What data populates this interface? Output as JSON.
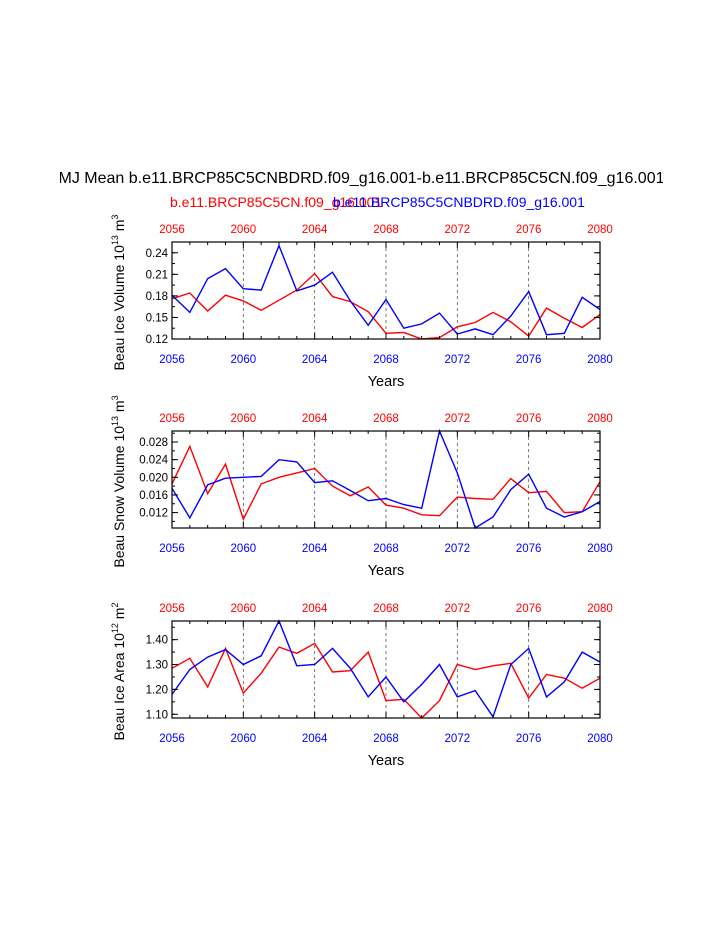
{
  "figure": {
    "title": "MJ Mean b.e11.BRCP85C5CNBDRD.f09_g16.001-b.e11.BRCP85C5CN.f09_g16.001",
    "legend_red": "b.e11.BRCP85C5CN.f09_g16.001",
    "legend_blue": "b.e11.BRCP85C5CNBDRD.f09_g16.001",
    "colors": {
      "red": "#ff0000",
      "blue": "#0000ff",
      "axis": "#000000",
      "grid": "#555555"
    }
  },
  "chart_data": [
    {
      "type": "line",
      "title": "",
      "xlabel": "Years",
      "ylabel": "Beau Ice Volume 10",
      "ylabel_exp": "13",
      "ylabel_unit": " m",
      "ylabel_unit_exp": "3",
      "xlim": [
        2056,
        2080
      ],
      "ylim": [
        0.12,
        0.255
      ],
      "yticks": [
        0.12,
        0.15,
        0.18,
        0.21,
        0.24
      ],
      "ytick_labels": [
        "0.12",
        "0.15",
        "0.18",
        "0.21",
        "0.24"
      ],
      "xticks": [
        2056,
        2060,
        2064,
        2068,
        2072,
        2076,
        2080
      ],
      "xtick_labels": [
        "2056",
        "2060",
        "2064",
        "2068",
        "2072",
        "2076",
        "2080"
      ],
      "x": [
        2056,
        2057,
        2058,
        2059,
        2060,
        2061,
        2062,
        2063,
        2064,
        2065,
        2066,
        2067,
        2068,
        2069,
        2070,
        2071,
        2072,
        2073,
        2074,
        2075,
        2076,
        2077,
        2078,
        2079,
        2080
      ],
      "series": [
        {
          "name": "b.e11.BRCP85C5CN.f09_g16.001",
          "color": "#ff0000",
          "values": [
            0.176,
            0.184,
            0.159,
            0.181,
            0.173,
            0.16,
            0.174,
            0.188,
            0.211,
            0.179,
            0.172,
            0.158,
            0.128,
            0.129,
            0.12,
            0.122,
            0.137,
            0.143,
            0.157,
            0.144,
            0.124,
            0.163,
            0.149,
            0.136,
            0.154
          ]
        },
        {
          "name": "b.e11.BRCP85C5CNBDRD.f09_g16.001",
          "color": "#0000ff",
          "values": [
            0.181,
            0.157,
            0.204,
            0.218,
            0.19,
            0.188,
            0.25,
            0.187,
            0.195,
            0.213,
            0.173,
            0.139,
            0.175,
            0.135,
            0.141,
            0.156,
            0.127,
            0.134,
            0.126,
            0.152,
            0.186,
            0.126,
            0.128,
            0.178,
            0.161
          ]
        }
      ]
    },
    {
      "type": "line",
      "title": "",
      "xlabel": "Years",
      "ylabel": "Beau Snow Volume 10",
      "ylabel_exp": "13",
      "ylabel_unit": " m",
      "ylabel_unit_exp": "3",
      "xlim": [
        2056,
        2080
      ],
      "ylim": [
        0.0085,
        0.0305
      ],
      "yticks": [
        0.012,
        0.016,
        0.02,
        0.024,
        0.028
      ],
      "ytick_labels": [
        "0.012",
        "0.016",
        "0.020",
        "0.024",
        "0.028"
      ],
      "xticks": [
        2056,
        2060,
        2064,
        2068,
        2072,
        2076,
        2080
      ],
      "xtick_labels": [
        "2056",
        "2060",
        "2064",
        "2068",
        "2072",
        "2076",
        "2080"
      ],
      "x": [
        2056,
        2057,
        2058,
        2059,
        2060,
        2061,
        2062,
        2063,
        2064,
        2065,
        2066,
        2067,
        2068,
        2069,
        2070,
        2071,
        2072,
        2073,
        2074,
        2075,
        2076,
        2077,
        2078,
        2079,
        2080
      ],
      "series": [
        {
          "name": "b.e11.BRCP85C5CN.f09_g16.001",
          "color": "#ff0000",
          "values": [
            0.0185,
            0.027,
            0.0163,
            0.023,
            0.0105,
            0.0185,
            0.02,
            0.021,
            0.022,
            0.018,
            0.0158,
            0.0178,
            0.0137,
            0.013,
            0.0115,
            0.0113,
            0.0155,
            0.0152,
            0.015,
            0.0197,
            0.0165,
            0.0168,
            0.012,
            0.0122,
            0.019
          ]
        },
        {
          "name": "b.e11.BRCP85C5CNBDRD.f09_g16.001",
          "color": "#0000ff",
          "values": [
            0.0175,
            0.0108,
            0.0183,
            0.0198,
            0.02,
            0.0202,
            0.024,
            0.0235,
            0.0188,
            0.0192,
            0.017,
            0.0147,
            0.0152,
            0.0138,
            0.013,
            0.0305,
            0.021,
            0.0085,
            0.011,
            0.0172,
            0.0207,
            0.013,
            0.011,
            0.0122,
            0.0145
          ]
        }
      ]
    },
    {
      "type": "line",
      "title": "",
      "xlabel": "Years",
      "ylabel": "Beau Ice Area 10",
      "ylabel_exp": "12",
      "ylabel_unit": " m",
      "ylabel_unit_exp": "2",
      "xlim": [
        2056,
        2080
      ],
      "ylim": [
        1.085,
        1.475
      ],
      "yticks": [
        1.1,
        1.2,
        1.3,
        1.4
      ],
      "ytick_labels": [
        "1.10",
        "1.20",
        "1.30",
        "1.40"
      ],
      "xticks": [
        2056,
        2060,
        2064,
        2068,
        2072,
        2076,
        2080
      ],
      "xtick_labels": [
        "2056",
        "2060",
        "2064",
        "2068",
        "2072",
        "2076",
        "2080"
      ],
      "x": [
        2056,
        2057,
        2058,
        2059,
        2060,
        2061,
        2062,
        2063,
        2064,
        2065,
        2066,
        2067,
        2068,
        2069,
        2070,
        2071,
        2072,
        2073,
        2074,
        2075,
        2076,
        2077,
        2078,
        2079,
        2080
      ],
      "series": [
        {
          "name": "b.e11.BRCP85C5CN.f09_g16.001",
          "color": "#ff0000",
          "values": [
            1.285,
            1.325,
            1.21,
            1.365,
            1.185,
            1.265,
            1.37,
            1.345,
            1.385,
            1.27,
            1.275,
            1.35,
            1.155,
            1.16,
            1.085,
            1.155,
            1.3,
            1.28,
            1.295,
            1.305,
            1.165,
            1.26,
            1.245,
            1.205,
            1.245
          ]
        },
        {
          "name": "b.e11.BRCP85C5CNBDRD.f09_g16.001",
          "color": "#0000ff",
          "values": [
            1.18,
            1.28,
            1.33,
            1.36,
            1.3,
            1.335,
            1.475,
            1.295,
            1.3,
            1.365,
            1.285,
            1.17,
            1.25,
            1.15,
            1.22,
            1.3,
            1.17,
            1.195,
            1.09,
            1.3,
            1.365,
            1.17,
            1.23,
            1.35,
            1.31
          ]
        }
      ]
    }
  ]
}
